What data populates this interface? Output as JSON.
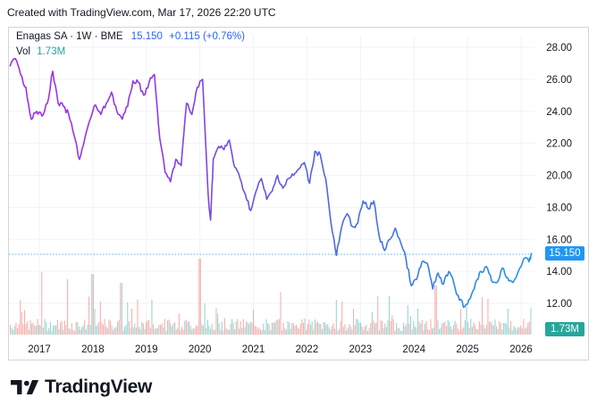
{
  "header": {
    "created_text": "Created with TradingView.com, Mar 17, 2026 22:20 UTC"
  },
  "legend": {
    "symbol": "Enagas SA · 1W · BME",
    "last": "15.150",
    "change": "+0.115 (+0.76%)",
    "vol_label": "Vol",
    "vol_value": "1.73M"
  },
  "badges": {
    "price": "15.150",
    "volume": "1.73M"
  },
  "footer": {
    "brand": "TradingView"
  },
  "colors": {
    "line_start": "#9c27b0",
    "line_mid": "#5b5cd9",
    "line_end": "#2196f3",
    "vol_up": "#26a69a",
    "vol_down": "#ef5350",
    "badge_price": "#2196f3",
    "badge_vol": "#26a69a"
  },
  "chart_data": {
    "type": "line",
    "y_ticks": [
      "28.00",
      "26.00",
      "24.00",
      "22.00",
      "20.00",
      "18.00",
      "16.00",
      "14.00",
      "12.00"
    ],
    "x_ticks": [
      "2017",
      "2018",
      "2019",
      "2020",
      "2021",
      "2022",
      "2023",
      "2024",
      "2025",
      "2026"
    ],
    "ylim": [
      10.5,
      29
    ],
    "xlim": [
      2016.4,
      2026.25
    ],
    "series": [
      {
        "x": [
          2016.45,
          2016.55,
          2016.65,
          2016.75,
          2016.85,
          2016.95,
          2017.05,
          2017.15,
          2017.25,
          2017.35,
          2017.45,
          2017.55,
          2017.65,
          2017.75,
          2017.85,
          2017.95,
          2018.05,
          2018.15,
          2018.25,
          2018.35,
          2018.45,
          2018.55,
          2018.65,
          2018.75,
          2018.85,
          2018.95,
          2019.05,
          2019.15,
          2019.25,
          2019.35,
          2019.45,
          2019.55,
          2019.65,
          2019.75,
          2019.85,
          2019.95,
          2020.05,
          2020.15,
          2020.2,
          2020.25,
          2020.35,
          2020.45,
          2020.55,
          2020.65,
          2020.75,
          2020.85,
          2020.95,
          2021.05,
          2021.15,
          2021.25,
          2021.35,
          2021.45,
          2021.55,
          2021.65,
          2021.75,
          2021.85,
          2021.95,
          2022.05,
          2022.15,
          2022.25,
          2022.35,
          2022.45,
          2022.55,
          2022.65,
          2022.75,
          2022.85,
          2022.95,
          2023.05,
          2023.15,
          2023.25,
          2023.35,
          2023.45,
          2023.55,
          2023.65,
          2023.75,
          2023.85,
          2023.95,
          2024.05,
          2024.15,
          2024.25,
          2024.35,
          2024.45,
          2024.55,
          2024.65,
          2024.75,
          2024.85,
          2024.95,
          2025.05,
          2025.15,
          2025.25,
          2025.35,
          2025.45,
          2025.55,
          2025.65,
          2025.75,
          2025.85,
          2025.95,
          2026.05,
          2026.15,
          2026.2
        ],
        "y": [
          26.8,
          27.3,
          26.3,
          25.5,
          23.5,
          24.0,
          23.7,
          24.5,
          26.5,
          24.5,
          24.3,
          23.8,
          22.5,
          21.0,
          22.3,
          23.5,
          24.4,
          23.8,
          24.5,
          25.2,
          24.0,
          23.5,
          24.3,
          25.9,
          25.8,
          25.0,
          25.8,
          26.3,
          22.3,
          20.2,
          19.6,
          21.0,
          20.6,
          24.5,
          23.8,
          25.5,
          26.0,
          19.0,
          17.2,
          21.0,
          21.8,
          21.6,
          22.2,
          20.5,
          19.8,
          18.8,
          17.8,
          19.0,
          19.8,
          18.5,
          19.0,
          20.0,
          19.2,
          19.8,
          20.0,
          20.4,
          20.8,
          19.5,
          21.5,
          21.3,
          19.8,
          17.0,
          15.0,
          16.8,
          17.6,
          16.8,
          17.0,
          18.4,
          17.9,
          18.4,
          16.2,
          15.3,
          16.0,
          16.7,
          15.8,
          14.8,
          13.1,
          13.5,
          14.6,
          14.5,
          12.9,
          13.9,
          13.2,
          14.0,
          13.2,
          12.2,
          11.8,
          12.3,
          13.3,
          14.0,
          14.3,
          13.4,
          13.3,
          14.2,
          13.6,
          13.3,
          14.0,
          14.8,
          14.6,
          15.15
        ]
      }
    ],
    "volume_note": "volume histogram bars along bottom (teal up / red down)"
  }
}
